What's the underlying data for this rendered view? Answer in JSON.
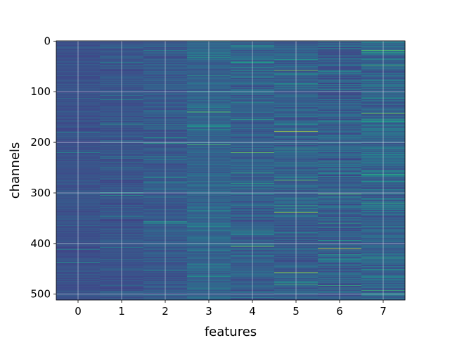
{
  "chart_data": {
    "type": "heatmap",
    "title": "",
    "xlabel": "features",
    "ylabel": "channels",
    "x_ticks": [
      0,
      1,
      2,
      3,
      4,
      5,
      6,
      7
    ],
    "y_ticks": [
      0,
      100,
      200,
      300,
      400,
      500
    ],
    "n_columns": 8,
    "n_rows": 512,
    "colormap": "viridis",
    "grid": true,
    "column_summary": [
      {
        "feature": 0,
        "typical_level": 0.25,
        "highlights": []
      },
      {
        "feature": 1,
        "typical_level": 0.26,
        "highlights": []
      },
      {
        "feature": 2,
        "typical_level": 0.28,
        "highlights": []
      },
      {
        "feature": 3,
        "typical_level": 0.32,
        "highlights": [
          {
            "channel": 100,
            "level": 0.55
          },
          {
            "channel": 140,
            "level": 0.75
          },
          {
            "channel": 205,
            "level": 0.7
          },
          {
            "channel": 465,
            "level": 0.55
          }
        ]
      },
      {
        "feature": 4,
        "typical_level": 0.3,
        "highlights": [
          {
            "channel": 10,
            "level": 0.6
          },
          {
            "channel": 42,
            "level": 0.55
          },
          {
            "channel": 155,
            "level": 0.6
          },
          {
            "channel": 220,
            "level": 0.75
          },
          {
            "channel": 405,
            "level": 0.8
          }
        ]
      },
      {
        "feature": 5,
        "typical_level": 0.3,
        "highlights": [
          {
            "channel": 58,
            "level": 0.8
          },
          {
            "channel": 178,
            "level": 0.95
          },
          {
            "channel": 275,
            "level": 0.75
          },
          {
            "channel": 338,
            "level": 0.85
          },
          {
            "channel": 458,
            "level": 0.9
          },
          {
            "channel": 480,
            "level": 0.7
          }
        ]
      },
      {
        "feature": 6,
        "typical_level": 0.3,
        "highlights": [
          {
            "channel": 302,
            "level": 0.75
          },
          {
            "channel": 410,
            "level": 0.95
          },
          {
            "channel": 360,
            "level": 0.6
          }
        ]
      },
      {
        "feature": 7,
        "typical_level": 0.32,
        "highlights": [
          {
            "channel": 18,
            "level": 0.75
          },
          {
            "channel": 48,
            "level": 0.7
          },
          {
            "channel": 143,
            "level": 0.8
          },
          {
            "channel": 320,
            "level": 0.65
          },
          {
            "channel": 428,
            "level": 0.6
          }
        ]
      }
    ]
  }
}
